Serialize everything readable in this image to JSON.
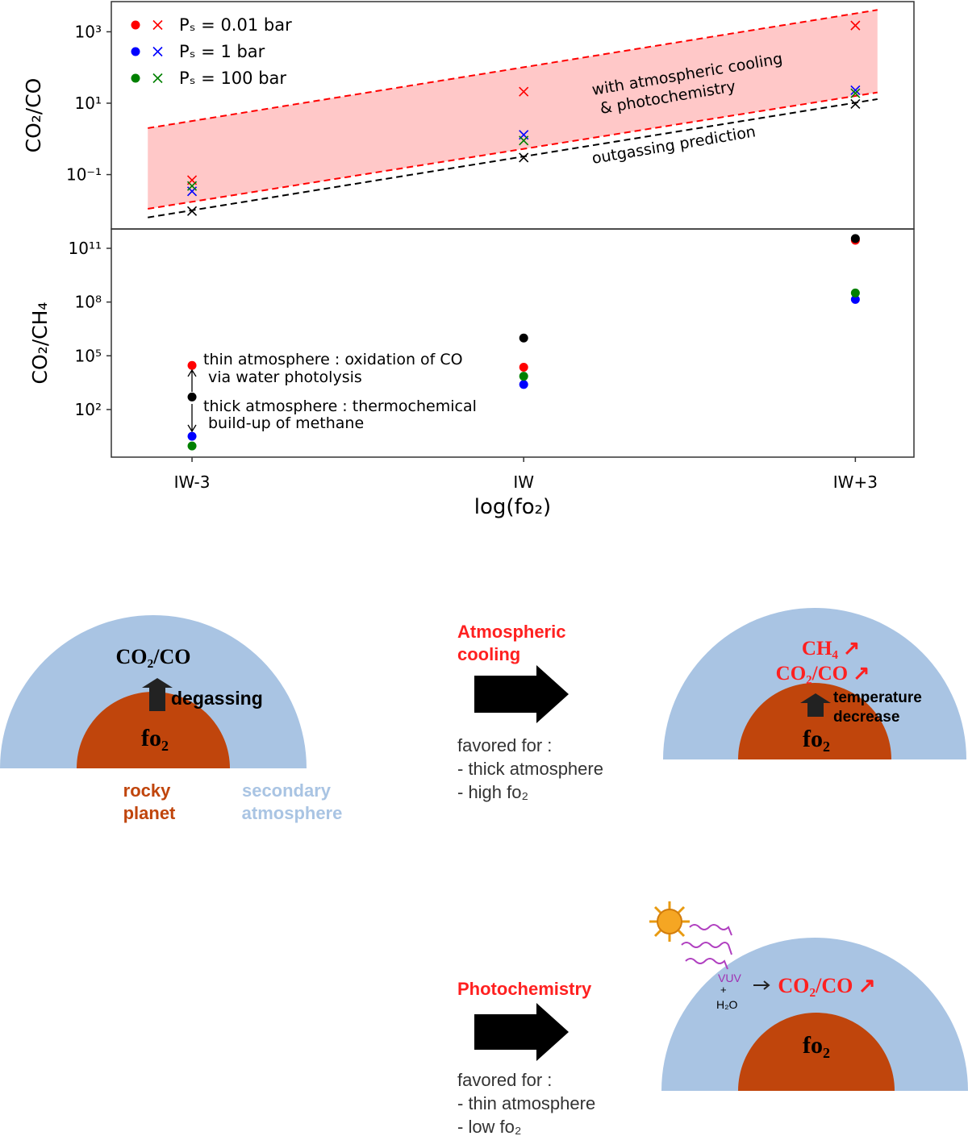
{
  "chart_data": [
    {
      "type": "scatter",
      "ylabel": "CO₂/CO",
      "yscale": "log",
      "ylim": [
        0.003,
        7000
      ],
      "xlim": [
        -3.73,
        3.53
      ],
      "yticks": [
        {
          "value": 0.1,
          "label": "10⁻¹"
        },
        {
          "value": 10,
          "label": "10¹"
        },
        {
          "value": 1000,
          "label": "10³"
        }
      ],
      "x": [
        -3,
        0,
        3
      ],
      "marker": "x",
      "legend": "upper left",
      "series": [
        {
          "name": "Pₛ = 0.01 bar",
          "color": "#ff0000",
          "values": [
            0.07,
            21,
            1500
          ]
        },
        {
          "name": "Pₛ = 1 bar",
          "color": "#0000ff",
          "values": [
            0.034,
            1.3,
            23
          ]
        },
        {
          "name": "Pₛ = 100 bar",
          "color": "#008000",
          "values": [
            0.048,
            0.9,
            19
          ]
        },
        {
          "color": "#000000",
          "values": [
            0.0095,
            0.3,
            9.5
          ]
        }
      ],
      "band": {
        "color": "#ffc8c8",
        "edge_color": "#ff0000",
        "edge_style": "dashed",
        "x": [
          -3.4,
          3.2
        ],
        "lower": [
          0.011,
          20
        ],
        "upper": [
          2.0,
          4100
        ]
      },
      "lines": [
        {
          "color": "#000000",
          "style": "dashed",
          "x": [
            -3.4,
            3.2
          ],
          "values": [
            0.0063,
            13
          ]
        }
      ],
      "annotations": [
        [
          "with atmospheric cooling",
          "& photochemistry"
        ],
        [
          "outgassing prediction"
        ]
      ]
    },
    {
      "type": "scatter",
      "ylabel": "CO₂/CH₄",
      "yscale": "log",
      "ylim": [
        0.22,
        1200000000000.0
      ],
      "xlim": [
        -3.73,
        3.53
      ],
      "yticks": [
        {
          "value": 100,
          "label": "10²"
        },
        {
          "value": 100000,
          "label": "10⁵"
        },
        {
          "value": 100000000,
          "label": "10⁸"
        },
        {
          "value": 100000000000,
          "label": "10¹¹"
        }
      ],
      "xticks": [
        {
          "value": -3,
          "label": "IW-3"
        },
        {
          "value": 0,
          "label": "IW"
        },
        {
          "value": 3,
          "label": "IW+3"
        }
      ],
      "xlabel": "log(fo₂)",
      "x": [
        -3,
        0,
        3
      ],
      "marker": "o",
      "series": [
        {
          "color": "#ff0000",
          "values": [
            29000,
            23000,
            280000000000.0
          ]
        },
        {
          "color": "#0000ff",
          "values": [
            3.2,
            2500,
            140000000.0
          ]
        },
        {
          "color": "#008000",
          "values": [
            0.93,
            7200,
            320000000.0
          ]
        },
        {
          "color": "#000000",
          "values": [
            500,
            980000,
            350000000000.0
          ]
        }
      ],
      "annotations": [
        [
          "thin atmosphere : oxidation of CO",
          "via water photolysis"
        ],
        [
          "thick atmosphere : thermochemical",
          "build-up of methane"
        ]
      ]
    }
  ],
  "diagram": {
    "start": {
      "ratio": "CO₂/CO",
      "process": "degassing",
      "core": "fo₂",
      "planet_label": [
        "rocky",
        "planet"
      ],
      "atmosphere_label": [
        "secondary",
        "atmosphere"
      ]
    },
    "cooling": {
      "title": [
        "Atmospheric",
        "cooling"
      ],
      "favored": [
        "favored for :",
        "- thick atmosphere",
        "- high fo₂"
      ],
      "products": [
        "CH₄ ↗",
        "CO₂/CO ↗"
      ],
      "process": [
        "temperature",
        "decrease"
      ],
      "core": "fo₂"
    },
    "photochemistry": {
      "title": "Photochemistry",
      "favored": [
        "favored for :",
        "- thin atmosphere",
        "- low fo₂"
      ],
      "reactants": [
        "VUV",
        "+",
        "H₂O"
      ],
      "product": "CO₂/CO ↗",
      "core": "fo₂"
    }
  }
}
